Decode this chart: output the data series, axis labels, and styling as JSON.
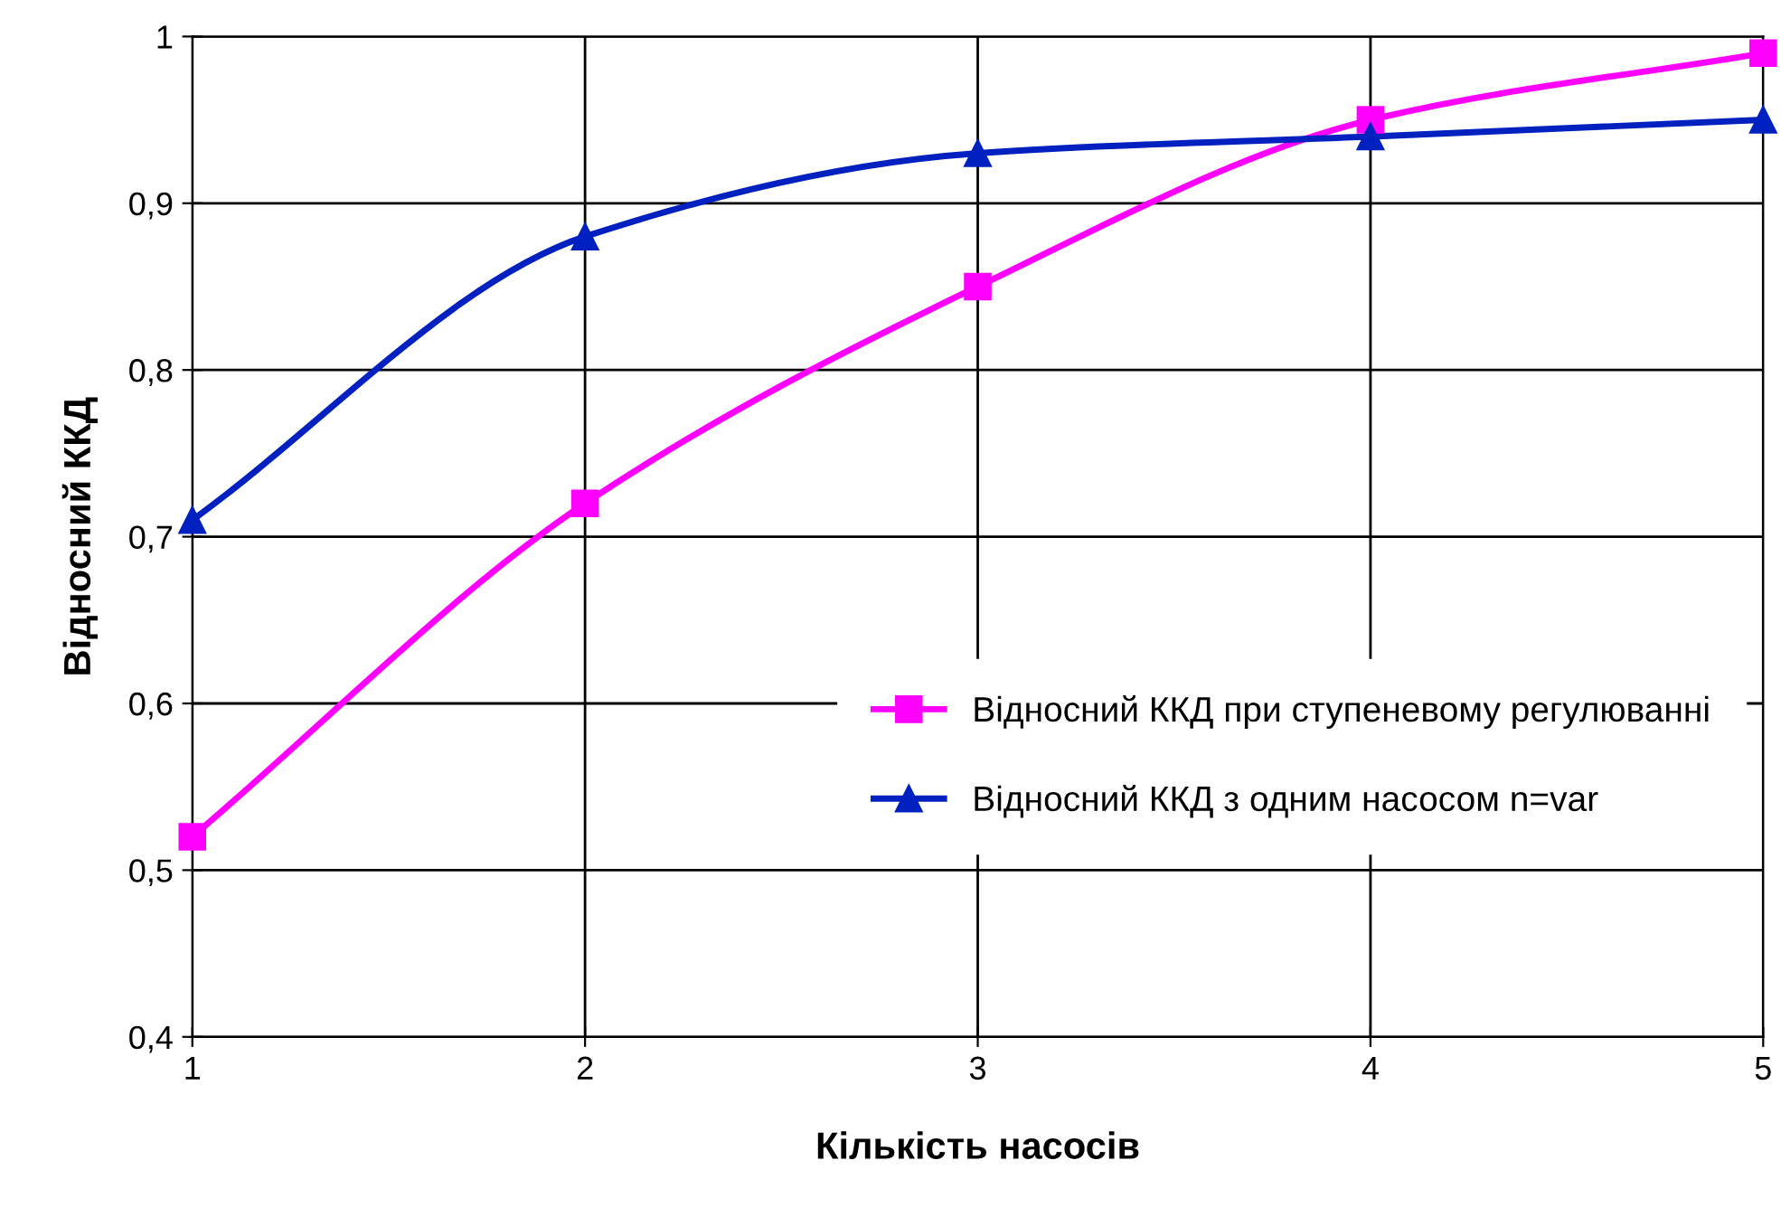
{
  "chart_data": {
    "type": "line",
    "xlabel": "Кількість насосів",
    "ylabel": "Відносний ККД",
    "x": [
      1,
      2,
      3,
      4,
      5
    ],
    "series": [
      {
        "name": "Відносний ККД при ступеневому регулюванні",
        "color": "#ff00ff",
        "marker": "square",
        "values": [
          0.52,
          0.72,
          0.85,
          0.95,
          0.99
        ]
      },
      {
        "name": "Відносний ККД з одним насосом n=var",
        "color": "#0020c0",
        "marker": "triangle",
        "values": [
          0.71,
          0.88,
          0.93,
          0.94,
          0.95
        ]
      }
    ],
    "xlim": [
      1,
      5
    ],
    "xticks": [
      1,
      2,
      3,
      4,
      5
    ],
    "ylim": [
      0.4,
      1
    ],
    "yticks": [
      {
        "value": 0.4,
        "label": "0,4"
      },
      {
        "value": 0.5,
        "label": "0,5"
      },
      {
        "value": 0.6,
        "label": "0,6"
      },
      {
        "value": 0.7,
        "label": "0,7"
      },
      {
        "value": 0.8,
        "label": "0,8"
      },
      {
        "value": 0.9,
        "label": "0,9"
      },
      1
    ],
    "grid": true,
    "legend": "right",
    "line_style": "solid"
  }
}
